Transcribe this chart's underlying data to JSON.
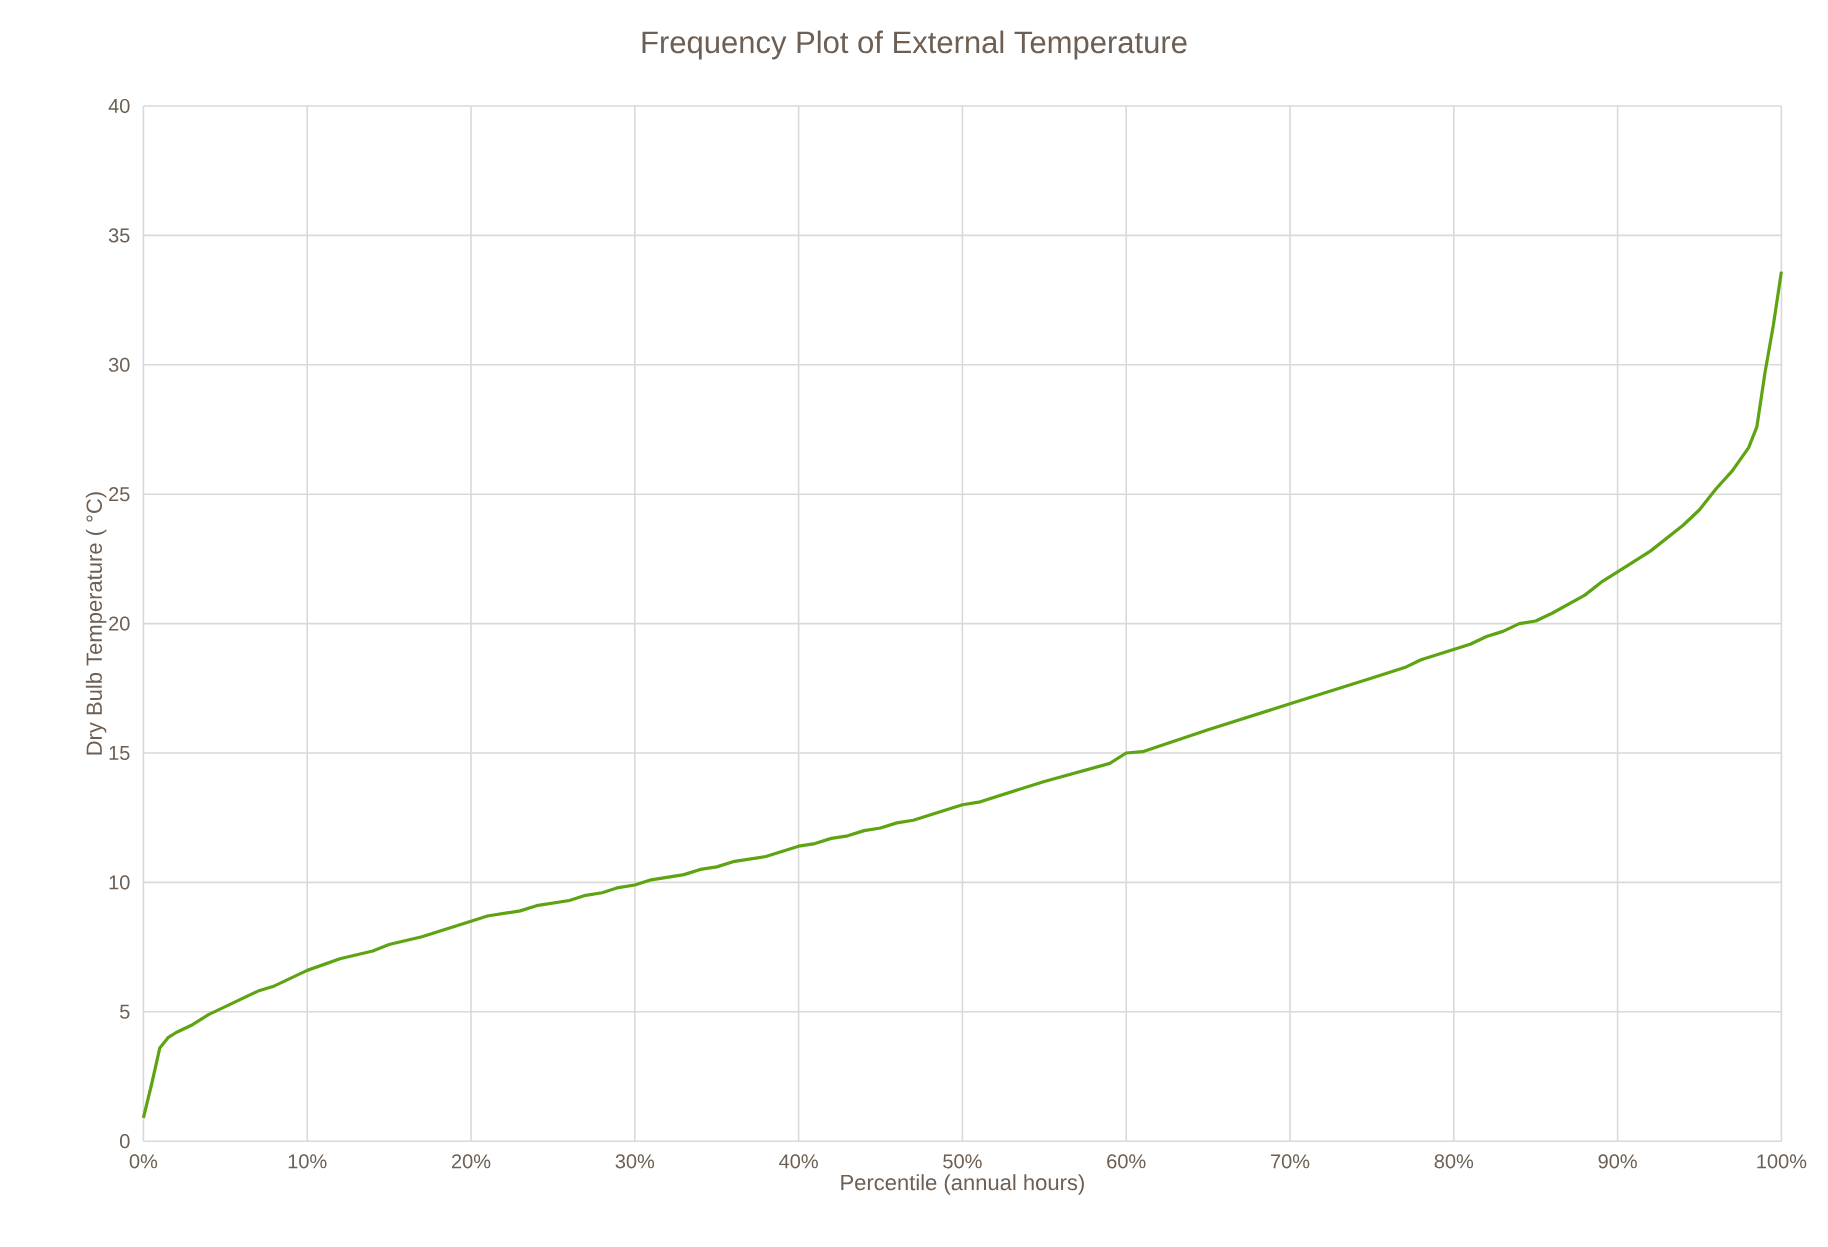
{
  "chart_data": {
    "type": "line",
    "title": "Frequency Plot of External Temperature",
    "xlabel": "Percentile (annual hours)",
    "ylabel": "Dry Bulb Temperature ( °C)",
    "x": [
      0,
      0.5,
      1,
      1.5,
      2,
      3,
      4,
      5,
      7,
      8,
      9,
      10,
      12,
      14,
      15,
      17,
      20,
      21,
      23,
      24,
      26,
      27,
      28,
      29,
      30,
      31,
      33,
      34,
      35,
      36,
      38,
      40,
      41,
      42,
      43,
      44,
      45,
      46,
      47,
      50,
      51,
      55,
      59,
      60,
      61,
      65,
      70,
      75,
      77,
      78,
      80,
      81,
      82,
      83,
      84,
      85,
      86,
      88,
      89,
      90,
      92,
      94,
      95,
      96,
      97,
      98,
      98.5,
      99,
      99.5,
      100
    ],
    "series": [
      {
        "color": "#5ea312",
        "values": [
          0.9,
          2.2,
          3.6,
          4.0,
          4.2,
          4.5,
          4.9,
          5.2,
          5.8,
          6.0,
          6.3,
          6.6,
          7.05,
          7.35,
          7.6,
          7.9,
          8.5,
          8.7,
          8.9,
          9.1,
          9.3,
          9.5,
          9.6,
          9.8,
          9.9,
          10.1,
          10.3,
          10.5,
          10.6,
          10.8,
          11.0,
          11.4,
          11.5,
          11.7,
          11.8,
          12.0,
          12.1,
          12.3,
          12.4,
          13.0,
          13.1,
          13.9,
          14.6,
          15.0,
          15.05,
          15.9,
          16.9,
          17.9,
          18.3,
          18.6,
          19.0,
          19.2,
          19.5,
          19.7,
          20.0,
          20.1,
          20.4,
          21.1,
          21.6,
          22.0,
          22.8,
          23.8,
          24.4,
          25.2,
          25.9,
          26.8,
          27.6,
          29.7,
          31.5,
          33.6
        ]
      }
    ],
    "xlim": [
      0,
      100
    ],
    "ylim": [
      0,
      40
    ],
    "xticks": [
      {
        "value": 0,
        "label": "0%"
      },
      {
        "value": 10,
        "label": "10%"
      },
      {
        "value": 20,
        "label": "20%"
      },
      {
        "value": 30,
        "label": "30%"
      },
      {
        "value": 40,
        "label": "40%"
      },
      {
        "value": 50,
        "label": "50%"
      },
      {
        "value": 60,
        "label": "60%"
      },
      {
        "value": 70,
        "label": "70%"
      },
      {
        "value": 80,
        "label": "80%"
      },
      {
        "value": 90,
        "label": "90%"
      },
      {
        "value": 100,
        "label": "100%"
      }
    ],
    "yticks": [
      0,
      5,
      10,
      15,
      20,
      25,
      30,
      35,
      40
    ],
    "grid": true,
    "marker": "none",
    "legend": false
  }
}
